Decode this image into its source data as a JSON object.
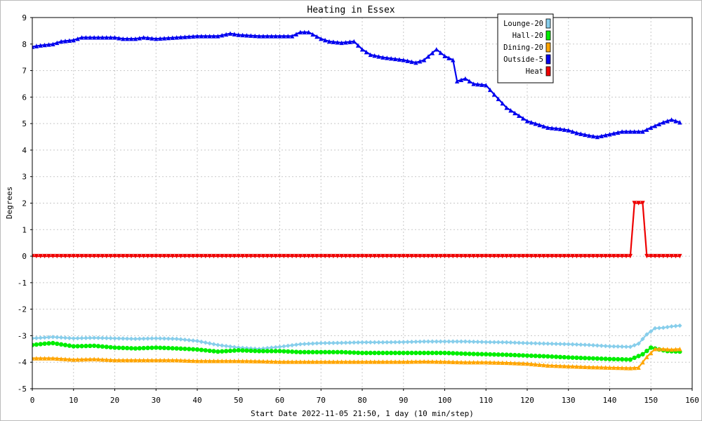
{
  "chart_data": {
    "type": "line",
    "title": "Heating in Essex",
    "xlabel": "Start Date 2022-11-05 21:50, 1 day (10 min/step)",
    "ylabel": "Degrees",
    "xlim": [
      0,
      160
    ],
    "ylim": [
      -5,
      9
    ],
    "xticks": [
      "0",
      "10",
      "20",
      "30",
      "40",
      "50",
      "60",
      "70",
      "80",
      "90",
      "100",
      "110",
      "120",
      "130",
      "140",
      "150",
      "160"
    ],
    "yticks": [
      "9",
      "8",
      "7",
      "6",
      "5",
      "4",
      "3",
      "2",
      "1",
      "0",
      "-1",
      "-2",
      "-3",
      "-4",
      "-5"
    ],
    "grid": true,
    "legend_position": "top-right",
    "series": [
      {
        "name": "Lounge-20",
        "color": "#87ceeb",
        "marker": "diamond",
        "points": [
          [
            0,
            -3.1
          ],
          [
            5,
            -3.05
          ],
          [
            10,
            -3.1
          ],
          [
            15,
            -3.08
          ],
          [
            20,
            -3.1
          ],
          [
            25,
            -3.12
          ],
          [
            30,
            -3.1
          ],
          [
            35,
            -3.12
          ],
          [
            40,
            -3.2
          ],
          [
            45,
            -3.35
          ],
          [
            50,
            -3.45
          ],
          [
            55,
            -3.5
          ],
          [
            60,
            -3.42
          ],
          [
            65,
            -3.32
          ],
          [
            70,
            -3.28
          ],
          [
            75,
            -3.27
          ],
          [
            80,
            -3.25
          ],
          [
            85,
            -3.25
          ],
          [
            90,
            -3.24
          ],
          [
            95,
            -3.22
          ],
          [
            100,
            -3.22
          ],
          [
            105,
            -3.22
          ],
          [
            110,
            -3.24
          ],
          [
            115,
            -3.25
          ],
          [
            120,
            -3.28
          ],
          [
            125,
            -3.3
          ],
          [
            130,
            -3.32
          ],
          [
            135,
            -3.35
          ],
          [
            140,
            -3.4
          ],
          [
            145,
            -3.42
          ],
          [
            147,
            -3.3
          ],
          [
            149,
            -2.95
          ],
          [
            151,
            -2.72
          ],
          [
            153,
            -2.7
          ],
          [
            155,
            -2.65
          ],
          [
            157,
            -2.62
          ]
        ]
      },
      {
        "name": "Hall-20",
        "color": "#00ee00",
        "marker": "circle",
        "points": [
          [
            0,
            -3.35
          ],
          [
            3,
            -3.3
          ],
          [
            5,
            -3.28
          ],
          [
            10,
            -3.4
          ],
          [
            15,
            -3.38
          ],
          [
            20,
            -3.45
          ],
          [
            25,
            -3.48
          ],
          [
            30,
            -3.45
          ],
          [
            35,
            -3.48
          ],
          [
            40,
            -3.52
          ],
          [
            45,
            -3.6
          ],
          [
            50,
            -3.55
          ],
          [
            55,
            -3.58
          ],
          [
            60,
            -3.58
          ],
          [
            65,
            -3.62
          ],
          [
            70,
            -3.62
          ],
          [
            75,
            -3.62
          ],
          [
            80,
            -3.65
          ],
          [
            85,
            -3.65
          ],
          [
            90,
            -3.65
          ],
          [
            95,
            -3.65
          ],
          [
            100,
            -3.65
          ],
          [
            105,
            -3.68
          ],
          [
            110,
            -3.7
          ],
          [
            115,
            -3.72
          ],
          [
            120,
            -3.75
          ],
          [
            125,
            -3.78
          ],
          [
            130,
            -3.82
          ],
          [
            135,
            -3.85
          ],
          [
            140,
            -3.88
          ],
          [
            145,
            -3.9
          ],
          [
            148,
            -3.7
          ],
          [
            150,
            -3.45
          ],
          [
            152,
            -3.52
          ],
          [
            154,
            -3.58
          ],
          [
            157,
            -3.6
          ]
        ]
      },
      {
        "name": "Dining-20",
        "color": "#ffa500",
        "marker": "triangle-up",
        "points": [
          [
            0,
            -3.85
          ],
          [
            5,
            -3.85
          ],
          [
            10,
            -3.9
          ],
          [
            15,
            -3.88
          ],
          [
            20,
            -3.92
          ],
          [
            25,
            -3.92
          ],
          [
            30,
            -3.92
          ],
          [
            35,
            -3.92
          ],
          [
            40,
            -3.95
          ],
          [
            45,
            -3.95
          ],
          [
            50,
            -3.95
          ],
          [
            55,
            -3.96
          ],
          [
            60,
            -3.98
          ],
          [
            65,
            -3.98
          ],
          [
            70,
            -3.98
          ],
          [
            75,
            -3.98
          ],
          [
            80,
            -3.98
          ],
          [
            85,
            -3.98
          ],
          [
            90,
            -3.98
          ],
          [
            95,
            -3.97
          ],
          [
            100,
            -3.98
          ],
          [
            105,
            -4.0
          ],
          [
            110,
            -4.0
          ],
          [
            115,
            -4.02
          ],
          [
            120,
            -4.05
          ],
          [
            125,
            -4.12
          ],
          [
            130,
            -4.15
          ],
          [
            135,
            -4.18
          ],
          [
            140,
            -4.2
          ],
          [
            145,
            -4.22
          ],
          [
            147,
            -4.2
          ],
          [
            149,
            -3.8
          ],
          [
            151,
            -3.5
          ],
          [
            153,
            -3.5
          ],
          [
            155,
            -3.52
          ],
          [
            157,
            -3.5
          ]
        ]
      },
      {
        "name": "Outside-5",
        "color": "#0000ee",
        "marker": "triangle-up",
        "points": [
          [
            0,
            7.9
          ],
          [
            2,
            7.95
          ],
          [
            5,
            8.0
          ],
          [
            7,
            8.1
          ],
          [
            10,
            8.15
          ],
          [
            12,
            8.25
          ],
          [
            15,
            8.25
          ],
          [
            20,
            8.25
          ],
          [
            22,
            8.2
          ],
          [
            25,
            8.2
          ],
          [
            27,
            8.25
          ],
          [
            30,
            8.2
          ],
          [
            35,
            8.25
          ],
          [
            40,
            8.3
          ],
          [
            45,
            8.3
          ],
          [
            48,
            8.4
          ],
          [
            50,
            8.35
          ],
          [
            55,
            8.3
          ],
          [
            60,
            8.3
          ],
          [
            63,
            8.3
          ],
          [
            65,
            8.45
          ],
          [
            67,
            8.45
          ],
          [
            70,
            8.2
          ],
          [
            72,
            8.1
          ],
          [
            75,
            8.05
          ],
          [
            78,
            8.1
          ],
          [
            80,
            7.8
          ],
          [
            82,
            7.6
          ],
          [
            85,
            7.5
          ],
          [
            90,
            7.4
          ],
          [
            93,
            7.3
          ],
          [
            95,
            7.4
          ],
          [
            98,
            7.8
          ],
          [
            100,
            7.55
          ],
          [
            102,
            7.4
          ],
          [
            103,
            6.6
          ],
          [
            105,
            6.7
          ],
          [
            107,
            6.5
          ],
          [
            110,
            6.45
          ],
          [
            112,
            6.1
          ],
          [
            115,
            5.6
          ],
          [
            118,
            5.3
          ],
          [
            120,
            5.1
          ],
          [
            122,
            5.0
          ],
          [
            125,
            4.85
          ],
          [
            128,
            4.8
          ],
          [
            130,
            4.75
          ],
          [
            132,
            4.65
          ],
          [
            135,
            4.55
          ],
          [
            137,
            4.5
          ],
          [
            140,
            4.6
          ],
          [
            143,
            4.7
          ],
          [
            146,
            4.7
          ],
          [
            148,
            4.7
          ],
          [
            150,
            4.85
          ],
          [
            153,
            5.05
          ],
          [
            155,
            5.15
          ],
          [
            157,
            5.05
          ]
        ]
      },
      {
        "name": "Heat",
        "color": "#ee0000",
        "marker": "triangle-down",
        "points": [
          [
            0,
            0
          ],
          [
            140,
            0
          ],
          [
            145,
            0
          ],
          [
            146,
            2
          ],
          [
            147,
            2
          ],
          [
            148,
            2
          ],
          [
            149,
            0
          ],
          [
            157,
            0
          ]
        ]
      }
    ]
  }
}
